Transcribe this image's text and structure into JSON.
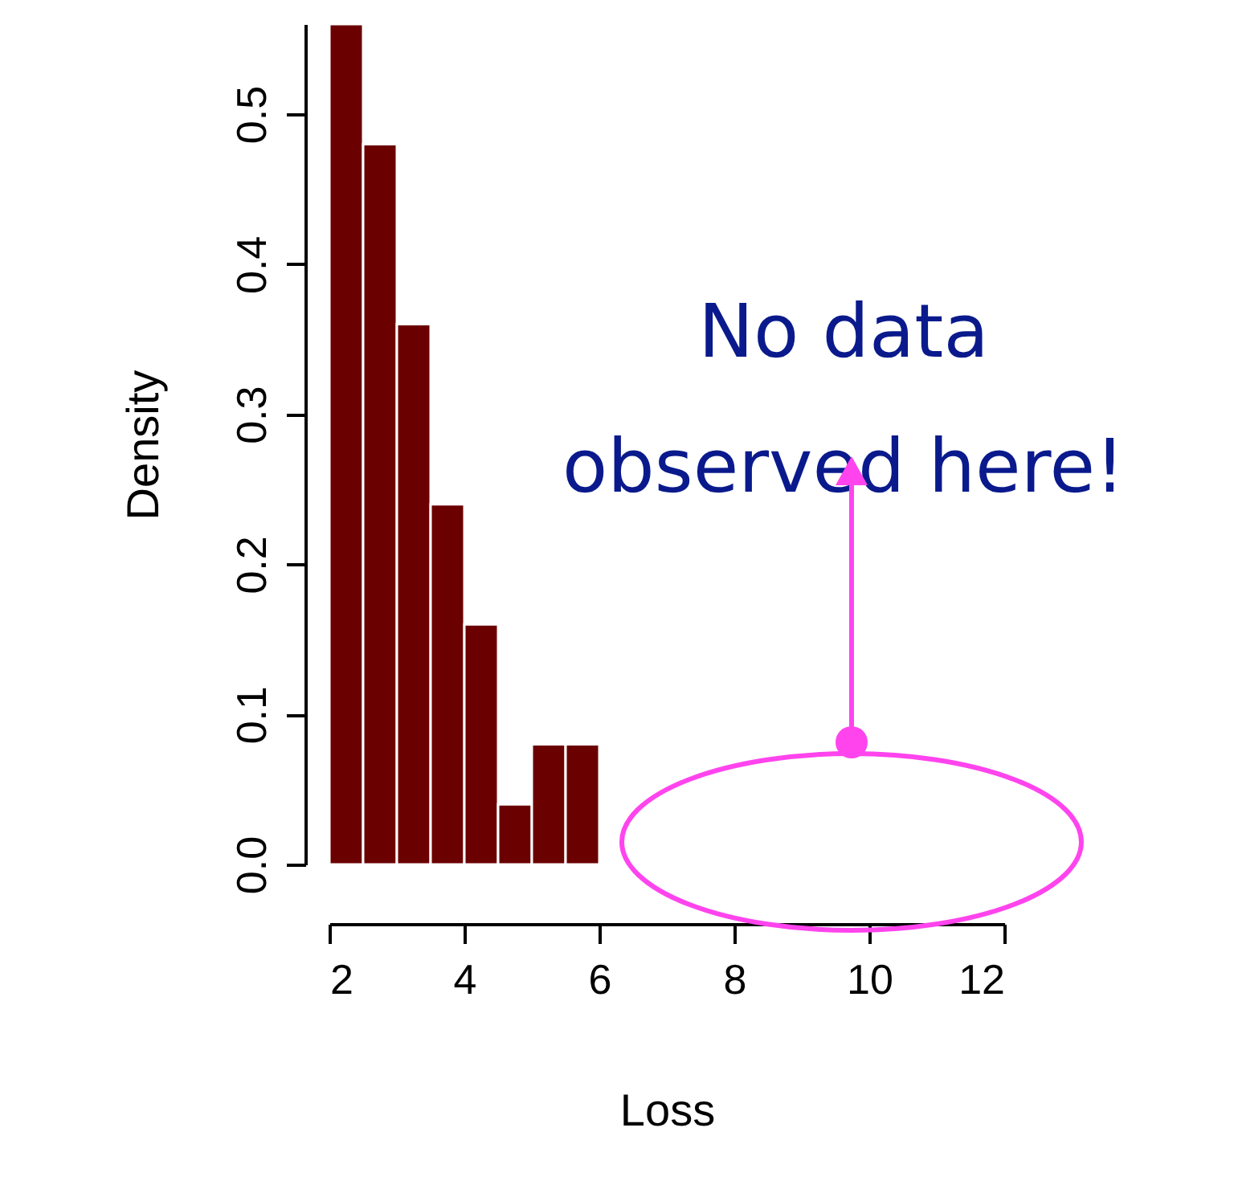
{
  "chart_data": {
    "type": "histogram",
    "xlabel": "Loss",
    "ylabel": "Density",
    "bins": [
      2,
      2.5,
      3,
      3.5,
      4,
      4.5,
      5,
      5.5,
      6
    ],
    "values": [
      0.56,
      0.48,
      0.36,
      0.24,
      0.16,
      0.04,
      0.08,
      0.08
    ],
    "color": "#6b0000",
    "xlim": [
      2,
      12
    ],
    "xticks": [
      2,
      4,
      6,
      8,
      10,
      12
    ],
    "ylim": [
      0,
      0.56
    ],
    "yticks": [
      {
        "value": 0,
        "label": "0.0"
      },
      {
        "value": 0.1,
        "label": "0.1"
      },
      {
        "value": 0.2,
        "label": "0.2"
      },
      {
        "value": 0.3,
        "label": "0.3"
      },
      {
        "value": 0.4,
        "label": "0.4"
      },
      {
        "value": 0.5,
        "label": "0.5"
      }
    ],
    "grid": false,
    "annotations": [
      "No data observed here!"
    ]
  }
}
